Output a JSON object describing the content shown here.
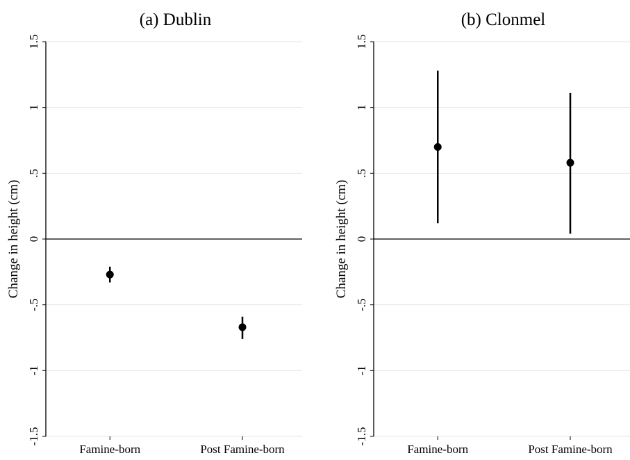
{
  "chart_data": [
    {
      "type": "errorbar",
      "title": "(a) Dublin",
      "y_label": "Change in height (cm)",
      "categories": [
        "Famine-born",
        "Post Famine-born"
      ],
      "values": [
        -0.27,
        -0.67
      ],
      "lower": [
        -0.33,
        -0.76
      ],
      "upper": [
        -0.21,
        -0.59
      ],
      "color": "#000000",
      "ylim": [
        -1.5,
        1.5
      ],
      "yticks": [
        -1.5,
        {
          "value": -1,
          "label": "-1"
        },
        {
          "value": -0.5,
          "label": "-.5"
        },
        0,
        {
          "value": 0.5,
          "label": ".5"
        },
        1,
        1.5
      ],
      "grid": true,
      "reference_line": 0
    },
    {
      "type": "errorbar",
      "title": "(b) Clonmel",
      "y_label": "Change in height (cm)",
      "categories": [
        "Famine-born",
        "Post Famine-born"
      ],
      "values": [
        0.7,
        0.58
      ],
      "lower": [
        0.12,
        0.04
      ],
      "upper": [
        1.28,
        1.11
      ],
      "color": "#000000",
      "ylim": [
        -1.5,
        1.5
      ],
      "yticks": [
        -1.5,
        {
          "value": -1,
          "label": "-1"
        },
        {
          "value": -0.5,
          "label": "-.5"
        },
        0,
        {
          "value": 0.5,
          "label": ".5"
        },
        1,
        1.5
      ],
      "grid": true,
      "reference_line": 0
    }
  ]
}
